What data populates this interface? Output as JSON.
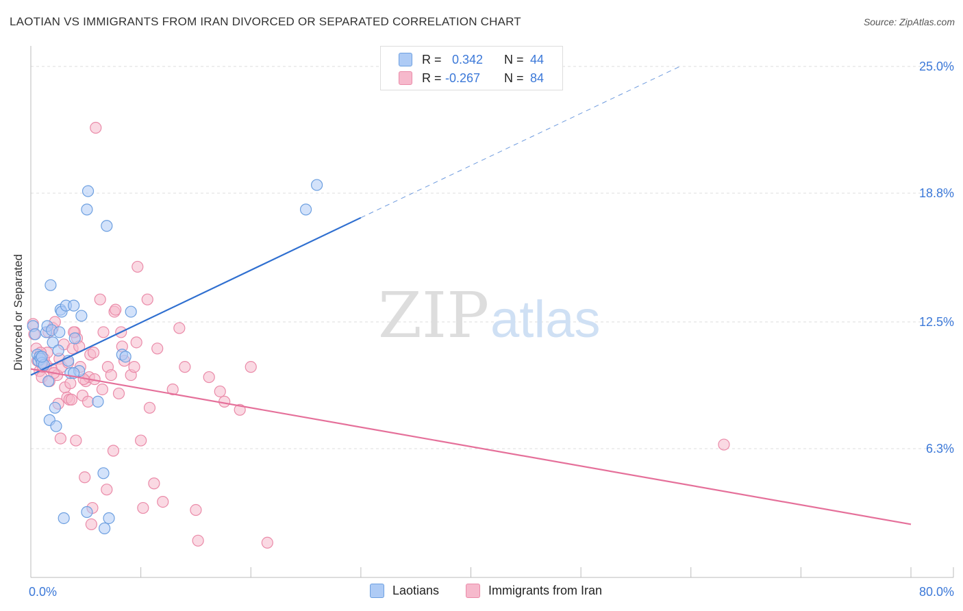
{
  "header": {
    "title": "LAOTIAN VS IMMIGRANTS FROM IRAN DIVORCED OR SEPARATED CORRELATION CHART",
    "source": "Source: ZipAtlas.com"
  },
  "legend": {
    "items": [
      {
        "r_label": "R =",
        "r_value": "0.342",
        "n_label": "N =",
        "n_value": "44"
      },
      {
        "r_label": "R =",
        "r_value": "-0.267",
        "n_label": "N =",
        "n_value": "84"
      }
    ]
  },
  "bottom_legend": {
    "laotians": "Laotians",
    "iran": "Immigrants from Iran"
  },
  "watermark": {
    "zip": "ZIP",
    "atlas": "atlas"
  },
  "colors": {
    "blue_fill": "#aecbf5",
    "blue_stroke": "#6c9fe0",
    "blue_line": "#2f6fd0",
    "pink_fill": "#f6b9cc",
    "pink_stroke": "#ea8aa8",
    "pink_line": "#e5709a",
    "tick_label": "#3b78d8"
  },
  "chart_data": {
    "type": "scatter",
    "title": "LAOTIAN VS IMMIGRANTS FROM IRAN DIVORCED OR SEPARATED CORRELATION CHART",
    "xlabel": "",
    "ylabel": "Divorced or Separated",
    "xlim": [
      0,
      80
    ],
    "ylim": [
      0,
      25
    ],
    "x_tick_labels": [
      "0.0%",
      "80.0%"
    ],
    "y_ticks": [
      6.3,
      12.5,
      18.8,
      25.0
    ],
    "y_tick_labels": [
      "6.3%",
      "12.5%",
      "18.8%",
      "25.0%"
    ],
    "grid": true,
    "series": [
      {
        "name": "Laotians",
        "r": 0.342,
        "n": 44,
        "trend": {
          "x0": 0,
          "y0": 9.9,
          "x1": 30,
          "y1": 17.6,
          "dashed_to_x": 59,
          "dashed_to_y": 25.0
        },
        "points": [
          [
            0.2,
            12.3
          ],
          [
            0.4,
            11.9
          ],
          [
            0.6,
            10.9
          ],
          [
            0.7,
            10.6
          ],
          [
            0.8,
            10.8
          ],
          [
            0.9,
            10.7
          ],
          [
            1.0,
            10.5
          ],
          [
            1.2,
            10.4
          ],
          [
            1.4,
            12.0
          ],
          [
            1.5,
            12.3
          ],
          [
            1.6,
            9.6
          ],
          [
            1.7,
            7.7
          ],
          [
            1.8,
            14.3
          ],
          [
            1.9,
            12.1
          ],
          [
            2.0,
            11.5
          ],
          [
            2.2,
            8.3
          ],
          [
            2.3,
            7.4
          ],
          [
            2.5,
            11.1
          ],
          [
            2.6,
            12.0
          ],
          [
            2.7,
            13.1
          ],
          [
            2.8,
            13.0
          ],
          [
            3.0,
            2.9
          ],
          [
            3.2,
            13.3
          ],
          [
            3.4,
            10.6
          ],
          [
            3.6,
            10.0
          ],
          [
            3.9,
            13.3
          ],
          [
            4.0,
            11.7
          ],
          [
            4.4,
            10.1
          ],
          [
            4.6,
            12.8
          ],
          [
            5.1,
            3.2
          ],
          [
            5.2,
            18.9
          ],
          [
            5.1,
            18.0
          ],
          [
            6.1,
            8.6
          ],
          [
            6.7,
            2.4
          ],
          [
            6.6,
            5.1
          ],
          [
            6.9,
            17.2
          ],
          [
            7.1,
            2.9
          ],
          [
            8.3,
            10.9
          ],
          [
            8.6,
            10.8
          ],
          [
            9.1,
            13.0
          ],
          [
            25.0,
            18.0
          ],
          [
            26.0,
            19.2
          ],
          [
            3.9,
            10.0
          ],
          [
            1.0,
            10.8
          ]
        ]
      },
      {
        "name": "Immigrants from Iran",
        "r": -0.267,
        "n": 84,
        "trend": {
          "x0": 0,
          "y0": 10.2,
          "x1": 80,
          "y1": 2.6
        },
        "points": [
          [
            0.2,
            12.4
          ],
          [
            0.3,
            11.9
          ],
          [
            0.5,
            11.2
          ],
          [
            0.6,
            10.6
          ],
          [
            0.8,
            10.1
          ],
          [
            1.0,
            9.8
          ],
          [
            1.2,
            10.7
          ],
          [
            1.4,
            10.4
          ],
          [
            1.5,
            11.0
          ],
          [
            1.7,
            9.6
          ],
          [
            1.9,
            10.2
          ],
          [
            2.0,
            12.2
          ],
          [
            2.2,
            12.5
          ],
          [
            2.4,
            9.9
          ],
          [
            2.5,
            8.5
          ],
          [
            2.6,
            10.7
          ],
          [
            2.7,
            6.8
          ],
          [
            2.8,
            10.3
          ],
          [
            3.0,
            11.4
          ],
          [
            3.1,
            9.3
          ],
          [
            3.3,
            8.8
          ],
          [
            3.4,
            10.5
          ],
          [
            3.5,
            8.7
          ],
          [
            3.6,
            9.5
          ],
          [
            3.7,
            8.7
          ],
          [
            3.8,
            11.2
          ],
          [
            4.0,
            12.0
          ],
          [
            4.1,
            6.7
          ],
          [
            4.2,
            11.7
          ],
          [
            4.4,
            11.3
          ],
          [
            4.5,
            10.3
          ],
          [
            4.7,
            8.9
          ],
          [
            4.9,
            4.9
          ],
          [
            5.0,
            9.6
          ],
          [
            5.2,
            8.6
          ],
          [
            5.3,
            9.8
          ],
          [
            5.4,
            10.9
          ],
          [
            5.5,
            2.6
          ],
          [
            5.6,
            3.4
          ],
          [
            5.7,
            11.0
          ],
          [
            5.8,
            9.7
          ],
          [
            5.9,
            22.0
          ],
          [
            6.3,
            13.6
          ],
          [
            6.6,
            12.0
          ],
          [
            6.9,
            4.3
          ],
          [
            7.0,
            10.3
          ],
          [
            7.3,
            9.9
          ],
          [
            7.5,
            6.2
          ],
          [
            7.6,
            13.0
          ],
          [
            7.7,
            13.1
          ],
          [
            8.2,
            12.0
          ],
          [
            8.3,
            11.3
          ],
          [
            8.5,
            10.6
          ],
          [
            9.1,
            9.9
          ],
          [
            9.4,
            10.3
          ],
          [
            9.6,
            11.5
          ],
          [
            9.7,
            15.2
          ],
          [
            10.0,
            6.7
          ],
          [
            10.2,
            3.4
          ],
          [
            10.6,
            13.6
          ],
          [
            10.8,
            8.3
          ],
          [
            11.2,
            4.6
          ],
          [
            11.5,
            11.2
          ],
          [
            12.0,
            3.7
          ],
          [
            12.9,
            9.2
          ],
          [
            13.5,
            12.2
          ],
          [
            14.0,
            10.3
          ],
          [
            15.0,
            3.3
          ],
          [
            15.2,
            1.8
          ],
          [
            16.2,
            9.8
          ],
          [
            17.2,
            9.1
          ],
          [
            17.6,
            8.6
          ],
          [
            19.0,
            8.2
          ],
          [
            20.0,
            10.3
          ],
          [
            21.5,
            1.7
          ],
          [
            63.0,
            6.5
          ],
          [
            1.1,
            10.3
          ],
          [
            2.1,
            10.0
          ],
          [
            3.9,
            12.0
          ],
          [
            4.8,
            9.7
          ],
          [
            6.5,
            9.2
          ],
          [
            0.9,
            11.0
          ],
          [
            1.6,
            12.0
          ],
          [
            8.0,
            9.0
          ]
        ]
      }
    ]
  }
}
